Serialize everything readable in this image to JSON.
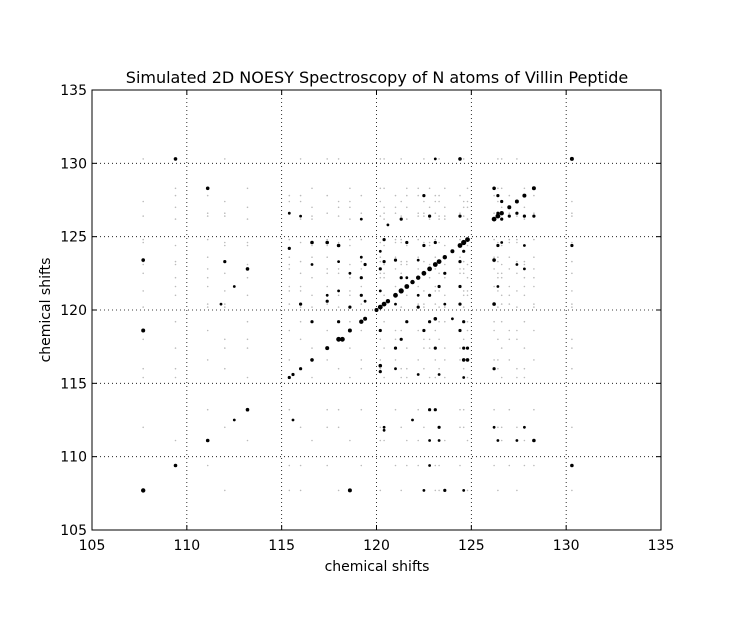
{
  "chart_data": {
    "type": "scatter",
    "title": "Simulated 2D NOESY Spectroscopy of N atoms of Villin Peptide",
    "xlabel": "chemical shifts",
    "ylabel": "chemical shifts",
    "xlim": [
      105,
      135
    ],
    "ylim": [
      105,
      135
    ],
    "x_ticks": [
      105,
      110,
      115,
      120,
      125,
      130,
      135
    ],
    "y_ticks": [
      105,
      110,
      115,
      120,
      125,
      130,
      135
    ],
    "x_tick_labels": [
      "105",
      "110",
      "115",
      "120",
      "125",
      "130",
      "135"
    ],
    "y_tick_labels": [
      "105",
      "110",
      "115",
      "120",
      "125",
      "130",
      "135"
    ],
    "grid": true,
    "grid_style": "dotted",
    "marker_color": "#000000",
    "shifts": [
      107.7,
      109.4,
      111.1,
      112.0,
      113.2,
      115.4,
      116.0,
      116.6,
      117.4,
      118.0,
      118.6,
      119.2,
      120.2,
      120.4,
      121.0,
      121.3,
      121.6,
      122.2,
      122.5,
      122.8,
      123.1,
      123.3,
      123.6,
      124.4,
      124.6,
      124.8,
      126.2,
      126.4,
      126.6,
      127.0,
      127.4,
      127.8,
      128.3,
      130.3
    ],
    "points": [
      [
        107.7,
        107.7,
        2.2
      ],
      [
        109.4,
        109.4,
        1.8
      ],
      [
        111.1,
        111.1,
        1.8
      ],
      [
        112.5,
        112.5,
        1.4
      ],
      [
        113.2,
        113.2,
        1.8
      ],
      [
        115.4,
        115.4,
        1.6
      ],
      [
        115.6,
        115.6,
        1.6
      ],
      [
        116.0,
        116.0,
        1.6
      ],
      [
        116.6,
        116.6,
        1.8
      ],
      [
        117.4,
        117.4,
        2.0
      ],
      [
        118.0,
        118.0,
        2.4
      ],
      [
        118.2,
        118.0,
        2.4
      ],
      [
        118.6,
        118.6,
        2.0
      ],
      [
        119.2,
        119.2,
        2.2
      ],
      [
        119.4,
        119.4,
        2.0
      ],
      [
        120.0,
        120.0,
        2.0
      ],
      [
        120.2,
        120.2,
        2.4
      ],
      [
        120.4,
        120.4,
        2.4
      ],
      [
        120.6,
        120.6,
        2.2
      ],
      [
        121.0,
        121.0,
        2.4
      ],
      [
        121.3,
        121.3,
        2.6
      ],
      [
        121.6,
        121.6,
        2.4
      ],
      [
        121.9,
        121.9,
        2.2
      ],
      [
        122.2,
        122.2,
        2.2
      ],
      [
        122.5,
        122.5,
        2.4
      ],
      [
        122.8,
        122.8,
        2.4
      ],
      [
        123.1,
        123.1,
        2.4
      ],
      [
        123.3,
        123.3,
        2.4
      ],
      [
        123.6,
        123.6,
        2.2
      ],
      [
        124.0,
        124.0,
        2.0
      ],
      [
        124.4,
        124.4,
        2.4
      ],
      [
        124.6,
        124.6,
        2.6
      ],
      [
        124.8,
        124.8,
        2.4
      ],
      [
        126.2,
        126.2,
        2.4
      ],
      [
        126.4,
        126.4,
        2.4
      ],
      [
        126.6,
        126.6,
        2.2
      ],
      [
        127.0,
        127.0,
        2.0
      ],
      [
        127.4,
        127.4,
        2.0
      ],
      [
        127.8,
        127.8,
        2.0
      ],
      [
        128.3,
        128.3,
        2.0
      ],
      [
        130.3,
        130.3,
        2.0
      ],
      [
        107.7,
        118.6,
        2.0
      ],
      [
        118.6,
        107.7,
        2.0
      ],
      [
        107.7,
        123.4,
        1.8
      ],
      [
        109.4,
        130.3,
        1.8
      ],
      [
        130.3,
        109.4,
        1.8
      ],
      [
        124.4,
        130.3,
        1.8
      ],
      [
        130.3,
        124.4,
        1.6
      ],
      [
        111.1,
        128.3,
        1.8
      ],
      [
        128.3,
        111.1,
        1.8
      ],
      [
        112.0,
        123.3,
        1.6
      ],
      [
        123.3,
        112.0,
        1.6
      ],
      [
        113.2,
        122.8,
        1.8
      ],
      [
        122.8,
        113.2,
        1.6
      ],
      [
        112.5,
        121.6,
        1.4
      ],
      [
        111.8,
        120.4,
        1.4
      ],
      [
        120.4,
        111.8,
        1.4
      ],
      [
        115.4,
        124.2,
        1.6
      ],
      [
        116.6,
        124.6,
        1.8
      ],
      [
        124.6,
        116.6,
        1.8
      ],
      [
        117.4,
        124.6,
        1.8
      ],
      [
        124.6,
        117.4,
        1.6
      ],
      [
        118.0,
        124.4,
        1.8
      ],
      [
        118.0,
        119.2,
        1.6
      ],
      [
        119.2,
        121.0,
        1.6
      ],
      [
        120.2,
        116.2,
        1.8
      ],
      [
        120.2,
        115.8,
        1.6
      ],
      [
        121.0,
        117.4,
        1.6
      ],
      [
        121.6,
        119.2,
        1.6
      ],
      [
        122.5,
        118.6,
        1.6
      ],
      [
        123.1,
        119.4,
        1.8
      ],
      [
        124.8,
        116.6,
        1.8
      ],
      [
        124.8,
        117.4,
        1.6
      ],
      [
        123.6,
        107.7,
        1.6
      ],
      [
        126.2,
        128.3,
        1.8
      ],
      [
        126.2,
        123.4,
        1.8
      ],
      [
        126.2,
        120.4,
        1.8
      ],
      [
        126.2,
        116.0,
        1.6
      ],
      [
        126.4,
        124.4,
        1.6
      ],
      [
        128.3,
        126.4,
        1.6
      ],
      [
        127.8,
        126.4,
        1.6
      ],
      [
        127.4,
        126.6,
        1.6
      ],
      [
        127.0,
        126.4,
        1.6
      ],
      [
        126.6,
        127.4,
        1.6
      ],
      [
        126.4,
        127.8,
        1.6
      ],
      [
        126.6,
        126.2,
        1.6
      ],
      [
        126.4,
        126.6,
        1.6
      ],
      [
        120.2,
        122.8,
        1.6
      ],
      [
        120.4,
        123.3,
        1.6
      ],
      [
        121.0,
        123.4,
        1.6
      ],
      [
        121.3,
        122.2,
        1.6
      ],
      [
        119.4,
        123.1,
        1.6
      ],
      [
        122.2,
        120.2,
        1.6
      ],
      [
        122.8,
        121.0,
        1.6
      ],
      [
        123.3,
        121.6,
        1.6
      ],
      [
        123.6,
        122.5,
        1.6
      ],
      [
        124.4,
        123.3,
        1.6
      ],
      [
        124.6,
        124.0,
        1.6
      ],
      [
        122.5,
        124.4,
        1.6
      ],
      [
        123.1,
        124.6,
        1.6
      ],
      [
        121.6,
        124.6,
        1.6
      ],
      [
        120.4,
        124.8,
        1.6
      ],
      [
        119.2,
        122.2,
        1.6
      ],
      [
        118.6,
        120.2,
        1.6
      ],
      [
        116.0,
        120.4,
        1.6
      ],
      [
        116.6,
        119.2,
        1.6
      ],
      [
        117.4,
        120.6,
        1.6
      ],
      [
        124.4,
        120.4,
        1.6
      ],
      [
        124.6,
        119.2,
        1.6
      ],
      [
        124.4,
        121.6,
        1.6
      ],
      [
        122.8,
        119.2,
        1.6
      ],
      [
        120.2,
        118.6,
        1.6
      ],
      [
        121.3,
        118.0,
        1.6
      ],
      [
        123.1,
        117.4,
        1.6
      ],
      [
        124.4,
        118.6,
        1.6
      ],
      [
        122.2,
        115.6,
        1.4
      ],
      [
        124.6,
        115.4,
        1.4
      ],
      [
        123.3,
        115.6,
        1.4
      ],
      [
        121.0,
        116.0,
        1.4
      ],
      [
        120.6,
        125.8,
        1.4
      ],
      [
        121.3,
        126.2,
        1.6
      ],
      [
        122.8,
        126.4,
        1.6
      ],
      [
        124.4,
        126.4,
        1.6
      ],
      [
        119.2,
        126.2,
        1.4
      ],
      [
        116.0,
        126.4,
        1.4
      ],
      [
        115.4,
        126.6,
        1.4
      ],
      [
        122.5,
        127.8,
        1.6
      ],
      [
        123.1,
        130.3,
        1.4
      ],
      [
        123.3,
        111.1,
        1.4
      ],
      [
        122.8,
        111.1,
        1.4
      ],
      [
        122.8,
        109.4,
        1.4
      ],
      [
        123.1,
        113.2,
        1.6
      ],
      [
        120.4,
        112.0,
        1.4
      ],
      [
        121.9,
        112.5,
        1.4
      ],
      [
        126.2,
        112.0,
        1.4
      ],
      [
        126.4,
        111.1,
        1.4
      ],
      [
        127.4,
        111.1,
        1.4
      ],
      [
        127.8,
        112.0,
        1.4
      ],
      [
        124.6,
        107.7,
        1.4
      ],
      [
        122.5,
        107.7,
        1.4
      ],
      [
        115.6,
        112.5,
        1.4
      ],
      [
        126.4,
        121.6,
        1.4
      ],
      [
        127.4,
        123.1,
        1.4
      ],
      [
        127.8,
        122.8,
        1.4
      ],
      [
        127.8,
        124.4,
        1.4
      ],
      [
        126.6,
        124.6,
        1.4
      ],
      [
        120.2,
        121.3,
        1.4
      ],
      [
        121.0,
        120.4,
        1.4
      ],
      [
        122.2,
        121.0,
        1.4
      ],
      [
        123.6,
        120.4,
        1.4
      ],
      [
        124.0,
        119.4,
        1.4
      ],
      [
        119.4,
        120.6,
        1.4
      ],
      [
        118.0,
        121.3,
        1.4
      ],
      [
        117.4,
        121.0,
        1.4
      ],
      [
        116.6,
        123.1,
        1.4
      ],
      [
        118.0,
        123.3,
        1.4
      ],
      [
        118.6,
        122.5,
        1.4
      ],
      [
        119.2,
        123.6,
        1.4
      ],
      [
        120.2,
        124.0,
        1.4
      ],
      [
        121.6,
        122.2,
        1.4
      ],
      [
        122.2,
        123.4,
        1.4
      ]
    ],
    "faint_marker_color": "#bbbbbb"
  }
}
